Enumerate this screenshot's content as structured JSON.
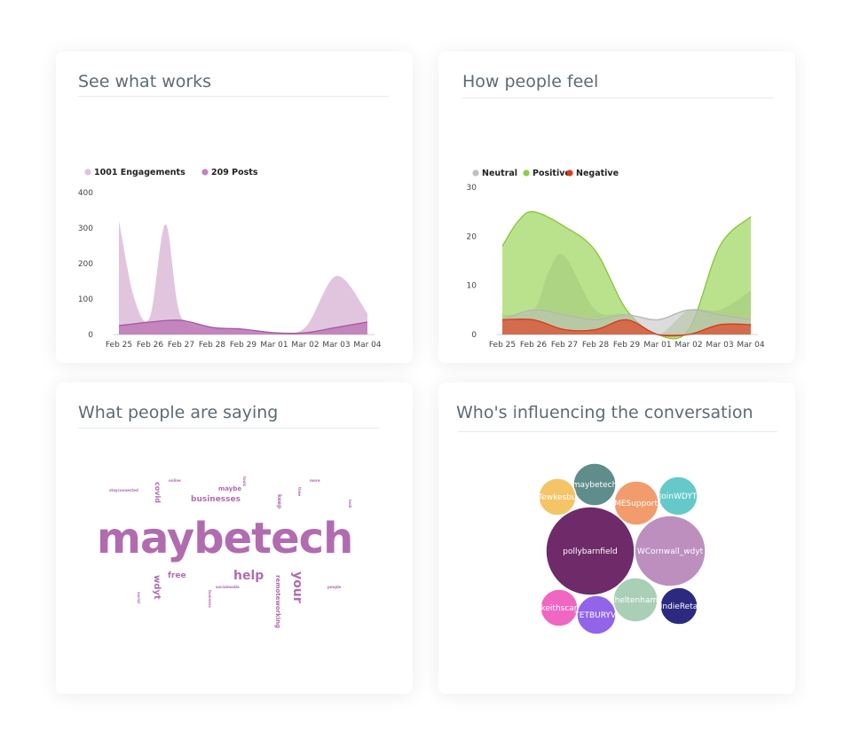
{
  "cards": {
    "works_title": "See what works",
    "feel_title": "How people feel",
    "saying_title": "What people are saying",
    "influence_title": "Who's influencing the conversation"
  },
  "chart_data": [
    {
      "type": "area",
      "title": "See what works",
      "categories": [
        "Feb 25",
        "Feb 26",
        "Feb 27",
        "Feb 28",
        "Feb 29",
        "Mar 01",
        "Mar 02",
        "Mar 03",
        "Mar 04"
      ],
      "ylim": [
        0,
        400
      ],
      "yticks": [
        0,
        100,
        200,
        300,
        400
      ],
      "legend_position": "top-left",
      "series": [
        {
          "name": "1001 Engagements",
          "color": "#dfc2dc",
          "x": [
            0,
            0.5,
            1,
            1.5,
            2,
            3,
            4,
            5,
            6,
            7,
            8
          ],
          "values": [
            320,
            100,
            50,
            310,
            50,
            20,
            10,
            5,
            20,
            165,
            60
          ]
        },
        {
          "name": "209 Posts",
          "color": "#c282bd",
          "x": [
            0,
            1,
            2,
            3,
            4,
            5,
            6,
            7,
            8
          ],
          "values": [
            25,
            35,
            40,
            20,
            15,
            5,
            5,
            20,
            35
          ]
        }
      ]
    },
    {
      "type": "area",
      "title": "How people feel",
      "categories": [
        "Feb 25",
        "Feb 26",
        "Feb 27",
        "Feb 28",
        "Feb 29",
        "Mar 01",
        "Mar 02",
        "Mar 03",
        "Mar 04"
      ],
      "ylim": [
        0,
        30
      ],
      "yticks": [
        0,
        10,
        20,
        30
      ],
      "legend_position": "top-left",
      "series": [
        {
          "name": "Neutral",
          "color": "#bfbfbf",
          "x": [
            0,
            1,
            2,
            3,
            4,
            5,
            6,
            7,
            8
          ],
          "values": [
            3,
            5,
            4,
            3,
            4,
            3,
            5,
            4,
            3
          ]
        },
        {
          "name": "Positive",
          "color": "#8ccf3f",
          "x": [
            0,
            0.5,
            1,
            2,
            3,
            4,
            5,
            6,
            7,
            8
          ],
          "values": [
            18,
            23,
            25,
            22,
            17,
            5,
            0,
            1,
            18,
            24
          ]
        },
        {
          "name": "Negative",
          "color": "#e03a1e",
          "x": [
            0,
            1,
            2,
            3,
            4,
            5,
            6,
            7,
            8
          ],
          "values": [
            3,
            3,
            1,
            1,
            3,
            0,
            0,
            2,
            2
          ]
        }
      ],
      "background_series": {
        "color": "#a2c97b",
        "x": [
          0,
          1,
          1.5,
          2,
          3,
          4,
          5,
          6,
          7,
          8
        ],
        "values": [
          4,
          5,
          13,
          16,
          5,
          4,
          0,
          5,
          5,
          9
        ]
      }
    }
  ],
  "word_cloud": {
    "color": "#b16cb0",
    "words": [
      {
        "text": "maybetech",
        "size": 48,
        "rotate": 0
      },
      {
        "text": "businesses",
        "size": 9,
        "rotate": 0
      },
      {
        "text": "maybe",
        "size": 7,
        "rotate": 0
      },
      {
        "text": "help",
        "size": 14,
        "rotate": 0
      },
      {
        "text": "your",
        "size": 14,
        "rotate": 90
      },
      {
        "text": "free",
        "size": 9,
        "rotate": 0
      },
      {
        "text": "wdyt",
        "size": 10,
        "rotate": 90
      },
      {
        "text": "covid",
        "size": 8,
        "rotate": 90
      },
      {
        "text": "keep",
        "size": 6,
        "rotate": 90
      },
      {
        "text": "remoteworking",
        "size": 7,
        "rotate": 90
      },
      {
        "text": "stayconnected",
        "size": 4,
        "rotate": 0
      },
      {
        "text": "online",
        "size": 4,
        "rotate": 0
      },
      {
        "text": "more",
        "size": 4,
        "rotate": 0
      },
      {
        "text": "time",
        "size": 4,
        "rotate": 90
      },
      {
        "text": "tools",
        "size": 4,
        "rotate": 90
      },
      {
        "text": "look",
        "size": 4,
        "rotate": 90
      },
      {
        "text": "socialmedia",
        "size": 4,
        "rotate": 0
      },
      {
        "text": "people",
        "size": 4,
        "rotate": 0
      },
      {
        "text": "social",
        "size": 4,
        "rotate": 90
      },
      {
        "text": "business",
        "size": 4,
        "rotate": 90
      }
    ]
  },
  "bubbles": [
    {
      "label": "pollybarnfield",
      "color": "#6f2a69"
    },
    {
      "label": "WCornwall_wdyt",
      "color": "#bc8fbf"
    },
    {
      "label": "maybetech",
      "color": "#5f8d8b"
    },
    {
      "label": "Tewkesbu",
      "color": "#f4c467"
    },
    {
      "label": "SMESupportH",
      "color": "#f29b6c"
    },
    {
      "label": "JoinWDYT",
      "color": "#66c9c9"
    },
    {
      "label": "Cheltenham_",
      "color": "#a9cfb7"
    },
    {
      "label": "IndieReta",
      "color": "#2c2a80"
    },
    {
      "label": "keithscar",
      "color": "#ef66c3"
    },
    {
      "label": "TETBURYVI",
      "color": "#9264ea"
    }
  ]
}
